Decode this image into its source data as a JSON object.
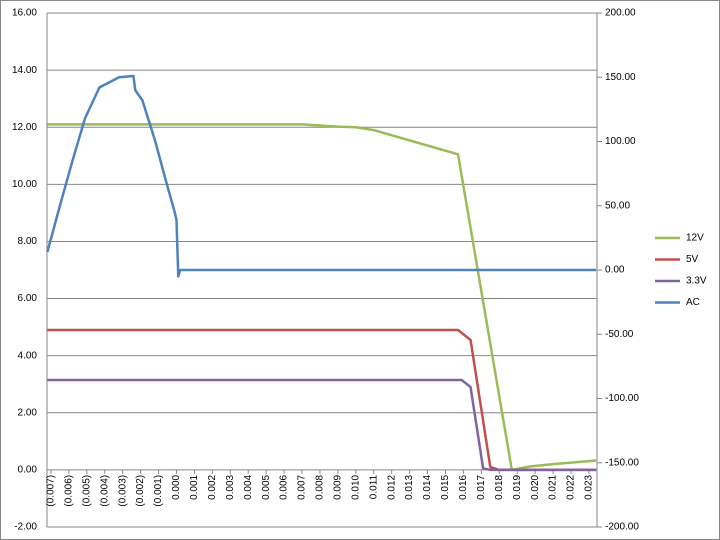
{
  "chart_data": {
    "type": "line",
    "xlim": [
      -0.00722,
      0.02345
    ],
    "xticks": [
      {
        "value": -0.007,
        "label": "(0.007)"
      },
      {
        "value": -0.006,
        "label": "(0.006)"
      },
      {
        "value": -0.005,
        "label": "(0.005)"
      },
      {
        "value": -0.004,
        "label": "(0.004)"
      },
      {
        "value": -0.003,
        "label": "(0.003)"
      },
      {
        "value": -0.002,
        "label": "(0.002)"
      },
      {
        "value": -0.001,
        "label": "(0.001)"
      },
      {
        "value": 0,
        "label": "0.000"
      },
      {
        "value": 0.001,
        "label": "0.001"
      },
      {
        "value": 0.002,
        "label": "0.002"
      },
      {
        "value": 0.003,
        "label": "0.003"
      },
      {
        "value": 0.004,
        "label": "0.004"
      },
      {
        "value": 0.005,
        "label": "0.005"
      },
      {
        "value": 0.006,
        "label": "0.006"
      },
      {
        "value": 0.007,
        "label": "0.007"
      },
      {
        "value": 0.008,
        "label": "0.008"
      },
      {
        "value": 0.009,
        "label": "0.009"
      },
      {
        "value": 0.01,
        "label": "0.010"
      },
      {
        "value": 0.011,
        "label": "0.011"
      },
      {
        "value": 0.012,
        "label": "0.012"
      },
      {
        "value": 0.013,
        "label": "0.013"
      },
      {
        "value": 0.014,
        "label": "0.014"
      },
      {
        "value": 0.015,
        "label": "0.015"
      },
      {
        "value": 0.016,
        "label": "0.016"
      },
      {
        "value": 0.017,
        "label": "0.017"
      },
      {
        "value": 0.018,
        "label": "0.018"
      },
      {
        "value": 0.019,
        "label": "0.019"
      },
      {
        "value": 0.02,
        "label": "0.020"
      },
      {
        "value": 0.021,
        "label": "0.021"
      },
      {
        "value": 0.022,
        "label": "0.022"
      },
      {
        "value": 0.023,
        "label": "0.023"
      }
    ],
    "ylim": [
      -2,
      16
    ],
    "yticks": [
      {
        "value": -2,
        "label": "-2.00"
      },
      {
        "value": 0,
        "label": "0.00"
      },
      {
        "value": 2,
        "label": "2.00"
      },
      {
        "value": 4,
        "label": "4.00"
      },
      {
        "value": 6,
        "label": "6.00"
      },
      {
        "value": 8,
        "label": "8.00"
      },
      {
        "value": 10,
        "label": "10.00"
      },
      {
        "value": 12,
        "label": "12.00"
      },
      {
        "value": 14,
        "label": "14.00"
      },
      {
        "value": 16,
        "label": "16.00"
      }
    ],
    "y2lim": [
      -200,
      200
    ],
    "y2ticks": [
      {
        "value": -200,
        "label": "-200.00"
      },
      {
        "value": -150,
        "label": "-150.00"
      },
      {
        "value": -100,
        "label": "-100.00"
      },
      {
        "value": -50,
        "label": "-50.00"
      },
      {
        "value": 0,
        "label": "0.00"
      },
      {
        "value": 50,
        "label": "50.00"
      },
      {
        "value": 100,
        "label": "100.00"
      },
      {
        "value": 150,
        "label": "150.00"
      },
      {
        "value": 200,
        "label": "200.00"
      }
    ],
    "grid": true,
    "legend": "right",
    "series": [
      {
        "name": "12V",
        "color": "#9bbb59",
        "x": [
          -0.0072,
          0.007,
          0.009,
          0.01,
          0.011,
          0.0157,
          0.0187,
          0.0197,
          0.021,
          0.0234
        ],
        "values": [
          12.1,
          12.1,
          12.02,
          12.0,
          11.9,
          11.05,
          0.0,
          0.12,
          0.2,
          0.33
        ]
      },
      {
        "name": "5V",
        "color": "#c0504d",
        "x": [
          -0.0072,
          0.0157,
          0.0164,
          0.0175,
          0.018,
          0.0234
        ],
        "values": [
          4.9,
          4.9,
          4.55,
          0.1,
          0.0,
          0.0
        ]
      },
      {
        "name": "3.3V",
        "color": "#8064a2",
        "x": [
          -0.0072,
          0.0159,
          0.0164,
          0.0171,
          0.0175,
          0.0234
        ],
        "values": [
          3.15,
          3.15,
          2.9,
          0.05,
          0.0,
          0.0
        ]
      },
      {
        "name": "AC",
        "color": "#4f81bd",
        "axis": "y2",
        "x": [
          -0.0072,
          -0.0065,
          -0.0058,
          -0.0051,
          -0.0043,
          -0.0032,
          -0.0024,
          -0.0023,
          -0.0019,
          -0.0012,
          -0.0006,
          -0.0001,
          0.0,
          0.0001,
          0.0002,
          0.0234
        ],
        "values": [
          14,
          50,
          85,
          118,
          142,
          150,
          151,
          140,
          132,
          101,
          70,
          45,
          39,
          -5,
          0,
          0
        ]
      }
    ]
  }
}
